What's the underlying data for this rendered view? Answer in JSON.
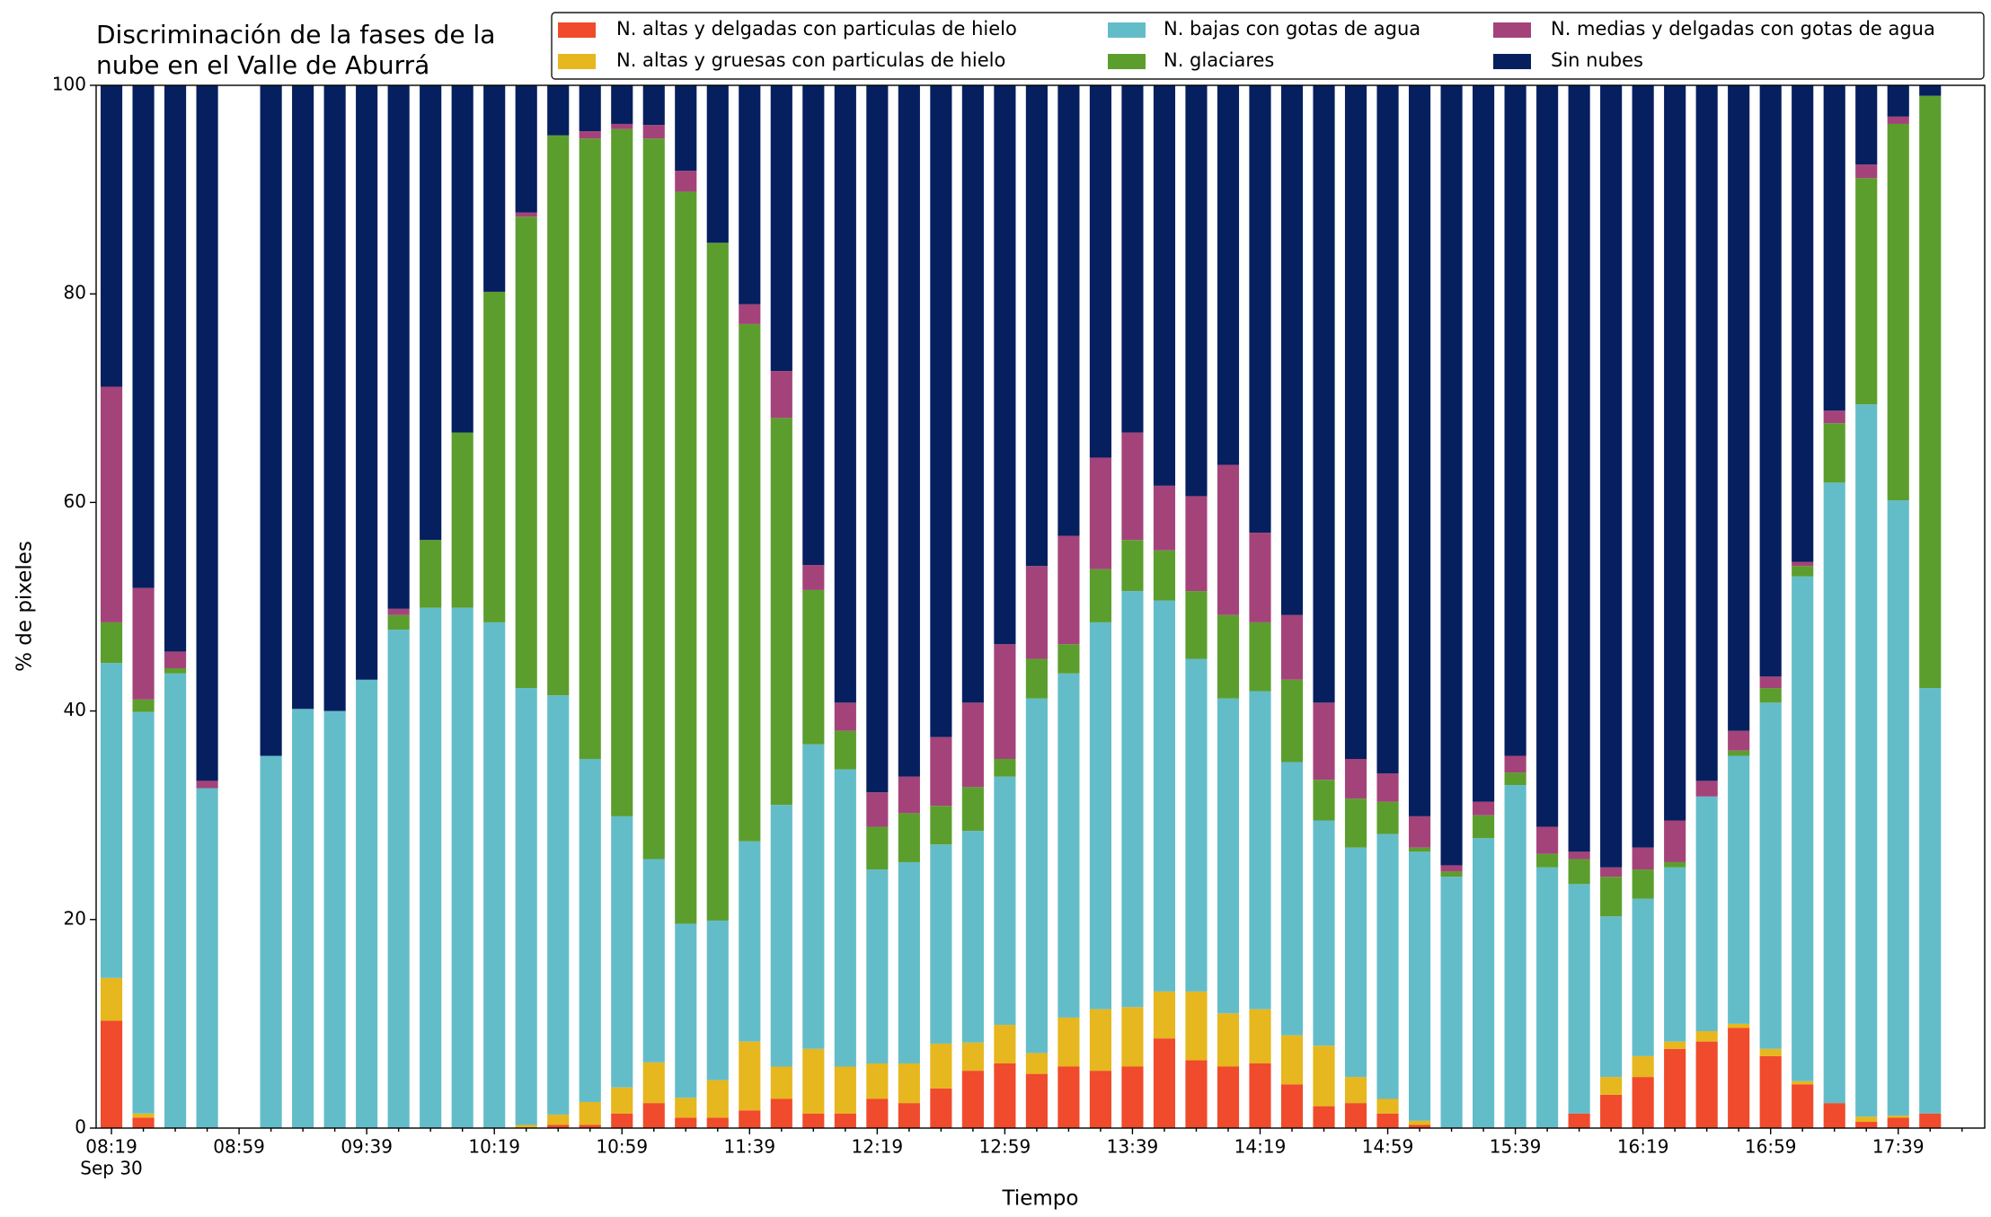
{
  "chart_data": {
    "type": "stacked_bar",
    "title": [
      "Discriminación de la fases de la",
      "nube en el Valle de Aburrá"
    ],
    "xlabel": "Tiempo",
    "ylabel": "% de pixeles",
    "x_date_label": "Sep 30",
    "categories": [
      "08:19",
      null,
      null,
      null,
      "08:59",
      null,
      null,
      null,
      "09:39",
      null,
      null,
      null,
      "10:19",
      null,
      null,
      null,
      "10:59",
      null,
      null,
      null,
      "11:39",
      null,
      null,
      null,
      "12:19",
      null,
      null,
      null,
      "12:59",
      null,
      null,
      null,
      "13:39",
      null,
      null,
      null,
      "14:19",
      null,
      null,
      null,
      "14:59",
      null,
      null,
      null,
      "15:39",
      null,
      null,
      null,
      "16:19",
      null,
      null,
      null,
      "16:59",
      null,
      null,
      null,
      "17:39",
      null
    ],
    "ylim": [
      0,
      100
    ],
    "yticks": [
      0,
      20,
      40,
      60,
      80,
      100
    ],
    "grid": false,
    "series": [
      {
        "name": "N. altas y delgadas con particulas de hielo",
        "color": "#ef4b2c",
        "values": [
          10.3,
          1.0,
          0,
          0,
          0,
          0,
          0,
          0,
          0,
          0,
          0,
          0,
          0,
          0,
          0.3,
          0.3,
          1.4,
          2.4,
          1.0,
          1.0,
          1.7,
          2.8,
          1.4,
          1.4,
          2.8,
          2.4,
          3.8,
          5.5,
          6.2,
          5.2,
          5.9,
          5.5,
          5.9,
          8.6,
          6.5,
          5.9,
          6.2,
          4.2,
          2.1,
          2.4,
          1.4,
          0.3,
          0,
          0,
          0,
          0,
          1.4,
          3.2,
          4.9,
          7.6,
          8.3,
          9.6,
          6.9,
          4.2,
          2.4,
          0.6,
          1.0,
          1.4
        ]
      },
      {
        "name": "N. altas y gruesas con particulas de hielo",
        "color": "#e6b71e",
        "values": [
          4.1,
          0.4,
          0,
          0,
          0,
          0,
          0,
          0,
          0,
          0,
          0,
          0,
          0,
          0.3,
          1.0,
          2.2,
          2.5,
          3.9,
          1.9,
          3.6,
          6.6,
          3.1,
          6.2,
          4.5,
          3.4,
          3.8,
          4.3,
          2.7,
          3.7,
          2.0,
          4.7,
          5.9,
          5.7,
          4.5,
          6.6,
          5.1,
          5.2,
          4.7,
          5.8,
          2.5,
          1.4,
          0.4,
          0,
          0,
          0,
          0,
          0,
          1.7,
          2.0,
          0.7,
          1.0,
          0.4,
          0.7,
          0.3,
          0,
          0.5,
          0.2,
          0
        ]
      },
      {
        "name": "N. bajas con gotas de agua",
        "color": "#63bdc9",
        "values": [
          30.2,
          38.5,
          43.6,
          32.6,
          0,
          35.7,
          40.2,
          40.0,
          43.0,
          47.8,
          49.9,
          49.9,
          48.5,
          41.9,
          40.2,
          32.9,
          26.0,
          19.5,
          16.7,
          15.3,
          19.2,
          25.1,
          29.2,
          28.5,
          18.6,
          19.3,
          19.1,
          20.3,
          23.8,
          34.0,
          33.0,
          37.1,
          39.9,
          37.5,
          31.9,
          30.2,
          30.5,
          26.2,
          21.6,
          22.0,
          25.4,
          25.8,
          24.1,
          27.8,
          32.9,
          25.0,
          22.0,
          15.4,
          15.1,
          16.7,
          22.5,
          25.7,
          33.2,
          48.4,
          59.5,
          68.3,
          59.0,
          40.8
        ]
      },
      {
        "name": "N. glaciares",
        "color": "#5c9e2e",
        "values": [
          3.9,
          1.2,
          0.5,
          0,
          0,
          0,
          0,
          0,
          0,
          1.4,
          6.5,
          16.8,
          31.7,
          45.2,
          53.7,
          59.5,
          65.9,
          69.1,
          70.2,
          65.0,
          49.6,
          37.1,
          14.8,
          3.7,
          4.1,
          4.7,
          3.7,
          4.2,
          1.7,
          3.8,
          2.8,
          5.1,
          4.9,
          4.8,
          6.5,
          8.0,
          6.6,
          7.9,
          3.9,
          4.7,
          3.1,
          0.4,
          0.5,
          2.2,
          1.2,
          1.3,
          2.4,
          3.8,
          2.8,
          0.5,
          0,
          0.5,
          1.4,
          1.0,
          5.7,
          21.7,
          36.1,
          56.8
        ]
      },
      {
        "name": "N. medias y delgadas con gotas de agua",
        "color": "#a4437a",
        "values": [
          22.6,
          10.7,
          1.6,
          0.7,
          0,
          0,
          0,
          0,
          0,
          0.6,
          0,
          0,
          0,
          0.4,
          0,
          0.7,
          0.5,
          1.3,
          2.0,
          0,
          1.9,
          4.5,
          2.4,
          2.7,
          3.3,
          3.5,
          6.6,
          8.1,
          11.0,
          8.9,
          10.4,
          10.7,
          10.3,
          6.2,
          9.1,
          14.4,
          8.6,
          6.2,
          7.4,
          3.8,
          2.7,
          3.0,
          0.6,
          1.3,
          1.6,
          2.6,
          0.7,
          0.9,
          2.1,
          4.0,
          1.5,
          1.9,
          1.1,
          0.4,
          1.2,
          1.3,
          0.7,
          0
        ]
      },
      {
        "name": "Sin nubes",
        "color": "#061f5f",
        "values": [
          28.9,
          48.2,
          54.3,
          66.7,
          0,
          64.3,
          59.8,
          60.0,
          57.0,
          50.2,
          43.6,
          33.3,
          19.8,
          12.2,
          4.8,
          4.4,
          3.7,
          3.8,
          8.2,
          15.1,
          21.0,
          27.4,
          46.0,
          59.2,
          67.8,
          66.3,
          62.5,
          59.2,
          53.6,
          46.1,
          43.2,
          35.7,
          33.3,
          38.4,
          39.4,
          36.4,
          42.9,
          50.8,
          59.2,
          64.6,
          66.0,
          70.1,
          74.8,
          68.7,
          64.3,
          71.1,
          73.5,
          75.0,
          73.1,
          70.5,
          66.7,
          61.9,
          56.7,
          45.7,
          31.2,
          7.6,
          3.0,
          1.0
        ]
      }
    ]
  }
}
